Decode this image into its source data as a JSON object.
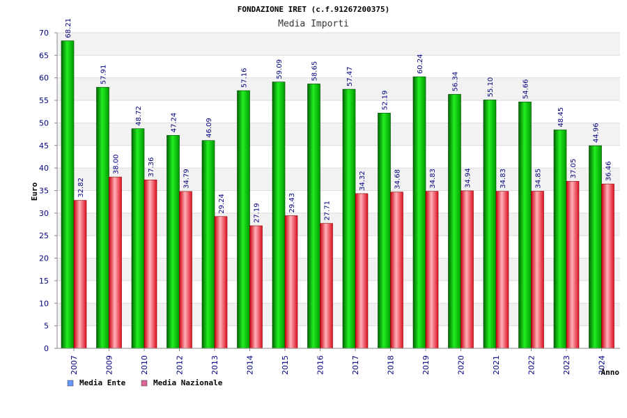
{
  "chart_data": {
    "type": "bar",
    "title": "FONDAZIONE IRET (c.f.91267200375)",
    "subtitle": "Media Importi",
    "xlabel": "Anno",
    "ylabel": "Euro",
    "ylim": [
      0,
      70
    ],
    "ytick_step": 5,
    "yticks": [
      "0",
      "5",
      "10",
      "15",
      "20",
      "25",
      "30",
      "35",
      "40",
      "45",
      "50",
      "55",
      "60",
      "65",
      "70"
    ],
    "categories": [
      "2007",
      "2009",
      "2010",
      "2012",
      "2013",
      "2014",
      "2015",
      "2016",
      "2017",
      "2018",
      "2019",
      "2020",
      "2021",
      "2022",
      "2023",
      "2024"
    ],
    "series": [
      {
        "name": "Media Ente",
        "legend_color": "#6699ff",
        "bar_color": "#00bb00",
        "values": [
          68.21,
          57.91,
          48.72,
          47.24,
          46.09,
          57.16,
          59.09,
          58.65,
          57.47,
          52.19,
          60.24,
          56.34,
          55.1,
          54.66,
          48.45,
          44.96
        ],
        "labels": [
          "68.21",
          "57.91",
          "48.72",
          "47.24",
          "46.09",
          "57.16",
          "59.09",
          "58.65",
          "57.47",
          "52.19",
          "60.24",
          "56.34",
          "55.10",
          "54.66",
          "48.45",
          "44.96"
        ]
      },
      {
        "name": "Media Nazionale",
        "legend_color": "#dd6699",
        "bar_color": "#ee2233",
        "values": [
          32.82,
          38.0,
          37.36,
          34.79,
          29.24,
          27.19,
          29.43,
          27.71,
          34.32,
          34.68,
          34.83,
          34.94,
          34.83,
          34.85,
          37.05,
          36.46
        ],
        "labels": [
          "32.82",
          "38.00",
          "37.36",
          "34.79",
          "29.24",
          "27.19",
          "29.43",
          "27.71",
          "34.32",
          "34.68",
          "34.83",
          "34.94",
          "34.83",
          "34.85",
          "37.05",
          "36.46"
        ]
      }
    ],
    "grid": true,
    "legend_position": "bottom-left"
  }
}
